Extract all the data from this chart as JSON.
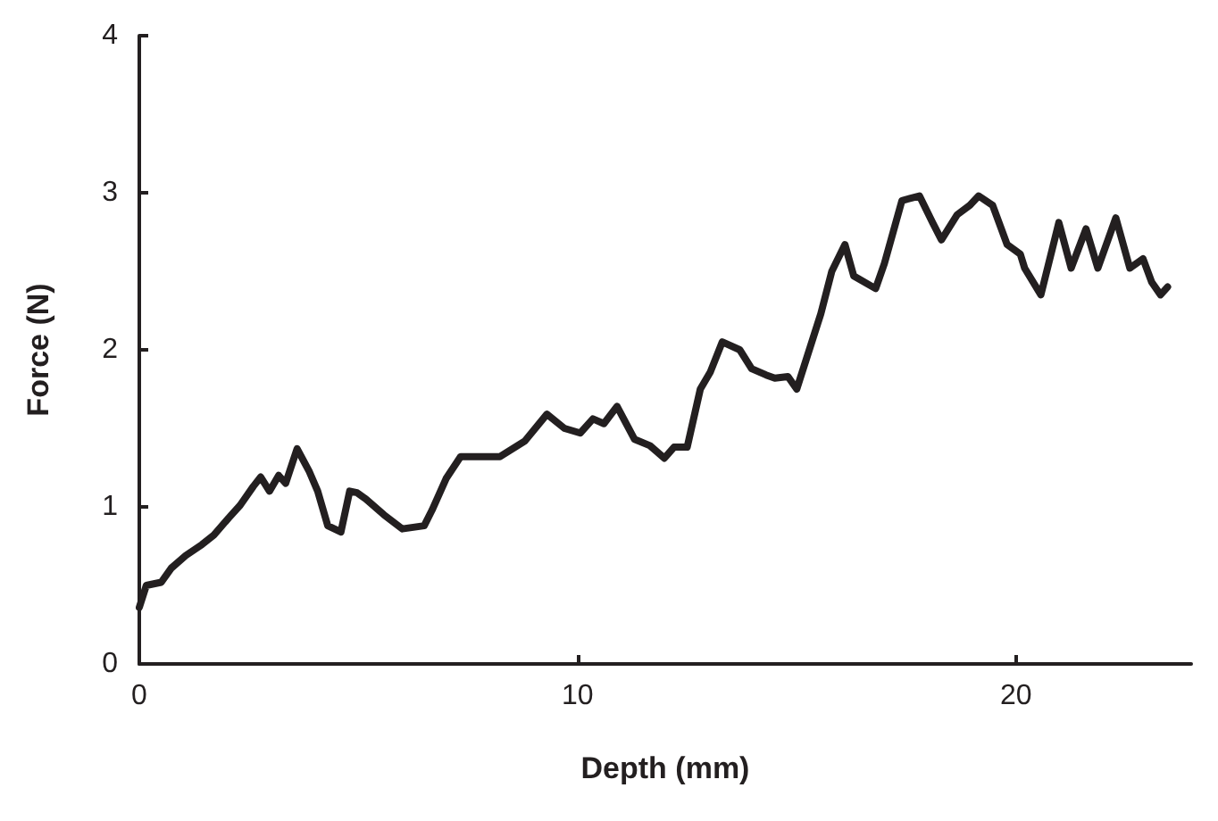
{
  "chart_data": {
    "type": "line",
    "xlabel": "Depth (mm)",
    "ylabel": "Force (N)",
    "xlim": [
      0,
      24
    ],
    "xticks": [
      0,
      10,
      20
    ],
    "ylim": [
      0,
      4
    ],
    "yticks": [
      0,
      1,
      2,
      3,
      4
    ],
    "grid": false,
    "marker": "none",
    "line_style": "solid",
    "series": [
      {
        "color": "#231f20",
        "x": [
          0,
          0.16,
          0.5,
          0.73,
          1.06,
          1.43,
          1.7,
          2.04,
          2.3,
          2.6,
          2.77,
          2.97,
          3.18,
          3.34,
          3.6,
          3.87,
          4.07,
          4.3,
          4.6,
          4.8,
          4.97,
          5.17,
          5.58,
          6.0,
          6.5,
          6.68,
          7.0,
          7.33,
          7.66,
          8.23,
          8.8,
          9.3,
          9.7,
          10.06,
          10.35,
          10.6,
          10.9,
          11.3,
          11.65,
          11.98,
          12.2,
          12.5,
          12.8,
          13.03,
          13.3,
          13.7,
          13.97,
          14.3,
          14.5,
          14.8,
          15.0,
          15.55,
          15.8,
          16.1,
          16.3,
          16.8,
          17.0,
          17.4,
          17.8,
          18.1,
          18.3,
          18.66,
          18.95,
          19.15,
          19.47,
          19.8,
          20.1,
          20.2,
          20.57,
          20.98,
          21.26,
          21.6,
          21.87,
          22.28,
          22.6,
          22.9,
          23.1,
          23.3,
          23.46
        ],
        "values": [
          0.36,
          0.5,
          0.52,
          0.61,
          0.69,
          0.76,
          0.82,
          0.93,
          1.01,
          1.13,
          1.19,
          1.1,
          1.2,
          1.15,
          1.37,
          1.23,
          1.1,
          0.88,
          0.84,
          1.1,
          1.09,
          1.05,
          0.95,
          0.86,
          0.88,
          0.98,
          1.18,
          1.32,
          1.32,
          1.32,
          1.42,
          1.59,
          1.5,
          1.47,
          1.56,
          1.53,
          1.64,
          1.43,
          1.39,
          1.31,
          1.38,
          1.38,
          1.75,
          1.86,
          2.05,
          2.0,
          1.88,
          1.84,
          1.82,
          1.83,
          1.75,
          2.23,
          2.5,
          2.67,
          2.47,
          2.39,
          2.55,
          2.95,
          2.98,
          2.81,
          2.7,
          2.86,
          2.92,
          2.98,
          2.92,
          2.67,
          2.61,
          2.52,
          2.35,
          2.81,
          2.52,
          2.77,
          2.52,
          2.84,
          2.52,
          2.58,
          2.43,
          2.35,
          2.4
        ]
      }
    ]
  }
}
